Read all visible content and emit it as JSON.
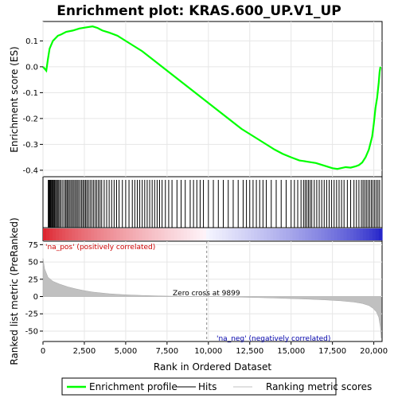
{
  "chart_data": {
    "type": "line",
    "title": "Enrichment plot: KRAS.600_UP.V1_UP",
    "xlabel": "Rank in Ordered Dataset",
    "ylabel_top": "Enrichment score (ES)",
    "ylabel_bottom": "Ranked list metric (PreRanked)",
    "x_ticks": [
      0,
      2500,
      5000,
      7500,
      10000,
      12500,
      15000,
      17500,
      20000
    ],
    "x_tick_labels": [
      "0",
      "2,500",
      "5,000",
      "7,500",
      "10,000",
      "12,500",
      "15,000",
      "17,500",
      "20,000"
    ],
    "xlim": [
      0,
      20500
    ],
    "es_ticks": [
      0.1,
      0.0,
      -0.1,
      -0.2,
      -0.3,
      -0.4
    ],
    "es_tick_labels": [
      "0.1",
      "0.0",
      "-0.1",
      "-0.2",
      "-0.3",
      "-0.4"
    ],
    "es_ylim": [
      -0.425,
      0.175
    ],
    "metric_ticks": [
      75,
      50,
      25,
      0,
      -25,
      -50
    ],
    "metric_tick_labels": [
      "75",
      "50",
      "25",
      "0",
      "-25",
      "-50"
    ],
    "metric_ylim": [
      -65,
      80
    ],
    "enrichment_profile": {
      "name": "Enrichment profile",
      "color": "#00ff00",
      "x": [
        0,
        200,
        300,
        400,
        600,
        900,
        1100,
        1400,
        1800,
        2200,
        2600,
        3000,
        3300,
        3600,
        4000,
        4500,
        5000,
        5500,
        6000,
        6500,
        7000,
        7500,
        8000,
        8500,
        9000,
        9500,
        10000,
        10500,
        11000,
        11500,
        12000,
        12500,
        13000,
        13500,
        14000,
        14500,
        15000,
        15500,
        16000,
        16500,
        17000,
        17500,
        17800,
        18000,
        18300,
        18600,
        18900,
        19100,
        19300,
        19500,
        19700,
        19900,
        20000,
        20100,
        20200,
        20300,
        20350,
        20400
      ],
      "y": [
        0.0,
        -0.015,
        0.03,
        0.07,
        0.1,
        0.12,
        0.125,
        0.135,
        0.14,
        0.148,
        0.152,
        0.156,
        0.15,
        0.14,
        0.132,
        0.12,
        0.1,
        0.08,
        0.06,
        0.035,
        0.01,
        -0.015,
        -0.04,
        -0.065,
        -0.09,
        -0.115,
        -0.14,
        -0.165,
        -0.19,
        -0.215,
        -0.24,
        -0.26,
        -0.28,
        -0.3,
        -0.32,
        -0.337,
        -0.35,
        -0.362,
        -0.367,
        -0.372,
        -0.382,
        -0.392,
        -0.395,
        -0.392,
        -0.388,
        -0.39,
        -0.385,
        -0.38,
        -0.37,
        -0.35,
        -0.32,
        -0.27,
        -0.22,
        -0.16,
        -0.12,
        -0.06,
        -0.02,
        0.0
      ]
    },
    "hits": {
      "name": "Hits",
      "color": "#000000",
      "ranks": [
        320,
        350,
        380,
        420,
        460,
        500,
        560,
        600,
        640,
        700,
        760,
        820,
        880,
        950,
        1020,
        1100,
        1200,
        1300,
        1380,
        1450,
        1520,
        1600,
        1680,
        1760,
        1840,
        1920,
        2000,
        2080,
        2160,
        2250,
        2340,
        2420,
        2500,
        2580,
        2660,
        2750,
        2850,
        2950,
        3050,
        3150,
        3250,
        3350,
        3450,
        3550,
        3700,
        3850,
        4000,
        4150,
        4300,
        4450,
        4600,
        4800,
        5000,
        5200,
        5400,
        5550,
        5700,
        5850,
        6000,
        6150,
        6300,
        6450,
        6600,
        6750,
        6900,
        7050,
        7200,
        7400,
        7600,
        7800,
        8100,
        8350,
        8600,
        8900,
        9100,
        9300,
        9500,
        9700,
        10000,
        10300,
        10600,
        10900,
        11200,
        11500,
        11800,
        12100,
        12300,
        12500,
        12700,
        12900,
        13100,
        13300,
        13500,
        13800,
        14100,
        14400,
        14700,
        15000,
        15200,
        15400,
        15600,
        15750,
        15850,
        15950,
        16050,
        16150,
        16250,
        16400,
        16550,
        16700,
        16850,
        17000,
        17150,
        17300,
        17450,
        17600,
        17750,
        17900,
        18050,
        18200,
        18400,
        18600,
        18800,
        18950,
        19100,
        19250,
        19350,
        19450,
        19550,
        19650,
        19750,
        19850,
        19950,
        20050,
        20150,
        20250,
        20350
      ]
    },
    "ranking_metric": {
      "name": "Ranking metric scores",
      "color": "#c0c0c0",
      "x": [
        0,
        100,
        300,
        600,
        1000,
        1500,
        2000,
        2500,
        3000,
        4000,
        5000,
        6000,
        7000,
        8000,
        9000,
        9899,
        11000,
        12000,
        13000,
        14000,
        15000,
        16000,
        17000,
        18000,
        18800,
        19300,
        19700,
        19950,
        20150,
        20300,
        20400,
        20450
      ],
      "y": [
        55,
        40,
        28,
        22,
        18,
        14,
        11,
        8.5,
        6.5,
        4,
        2.5,
        1.6,
        0.9,
        0.4,
        0.15,
        0,
        -0.5,
        -1,
        -1.5,
        -2.2,
        -3,
        -3.8,
        -4.8,
        -6.2,
        -8,
        -10,
        -13,
        -17,
        -22,
        -30,
        -45,
        -60
      ]
    },
    "annotations": {
      "pos_label": "'na_pos' (positively correlated)",
      "neg_label": "'na_neg' (negatively correlated)",
      "zero_cross": "Zero cross at 9899",
      "zero_cross_x": 9899
    },
    "colors": {
      "pos": "#cc0000",
      "neg": "#0000cc"
    },
    "legend": [
      {
        "name": "Enrichment profile",
        "color": "#00ff00"
      },
      {
        "name": "Hits",
        "color": "#000000"
      },
      {
        "name": "Ranking metric scores",
        "color": "#c0c0c0"
      }
    ]
  }
}
